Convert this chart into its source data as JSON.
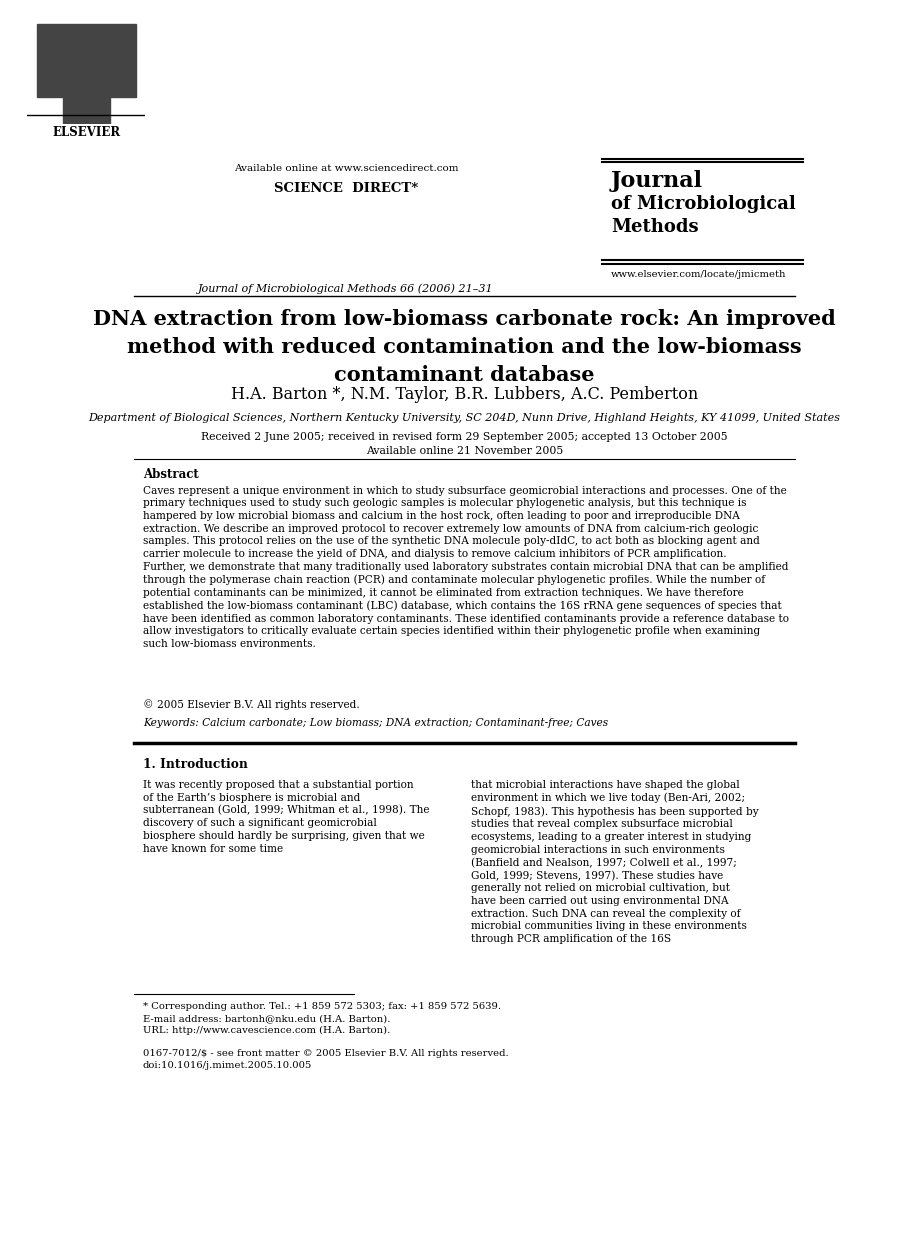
{
  "bg_color": "#ffffff",
  "header": {
    "available_online": "Available online at www.sciencedirect.com",
    "science_direct": "SCIENCE  DIRECT*",
    "journal_name_line1": "Journal",
    "journal_name_of": "of",
    "journal_name_line2": "Microbiological",
    "journal_name_line3": "Methods",
    "journal_ref": "Journal of Microbiological Methods 66 (2006) 21–31",
    "journal_url": "www.elsevier.com/locate/jmicmeth",
    "elsevier": "ELSEVIER"
  },
  "title": "DNA extraction from low-biomass carbonate rock: An improved\nmethod with reduced contamination and the low-biomass\ncontaminant database",
  "authors": "H.A. Barton *, N.M. Taylor, B.R. Lubbers, A.C. Pemberton",
  "affiliation": "Department of Biological Sciences, Northern Kentucky University, SC 204D, Nunn Drive, Highland Heights, KY 41099, United States",
  "dates": "Received 2 June 2005; received in revised form 29 September 2005; accepted 13 October 2005\nAvailable online 21 November 2005",
  "abstract_label": "Abstract",
  "abstract_text": "Caves represent a unique environment in which to study subsurface geomicrobial interactions and processes. One of the primary techniques used to study such geologic samples is molecular phylogenetic analysis, but this technique is hampered by low microbial biomass and calcium in the host rock, often leading to poor and irreproducible DNA extraction. We describe an improved protocol to recover extremely low amounts of DNA from calcium-rich geologic samples. This protocol relies on the use of the synthetic DNA molecule poly-dIdC, to act both as blocking agent and carrier molecule to increase the yield of DNA, and dialysis to remove calcium inhibitors of PCR amplification. Further, we demonstrate that many traditionally used laboratory substrates contain microbial DNA that can be amplified through the polymerase chain reaction (PCR) and contaminate molecular phylogenetic profiles. While the number of potential contaminants can be minimized, it cannot be eliminated from extraction techniques. We have therefore established the low-biomass contaminant (LBC) database, which contains the 16S rRNA gene sequences of species that have been identified as common laboratory contaminants. These identified contaminants provide a reference database to allow investigators to critically evaluate certain species identified within their phylogenetic profile when examining such low-biomass environments.",
  "copyright": "© 2005 Elsevier B.V. All rights reserved.",
  "keywords_label": "Keywords:",
  "keywords": "Calcium carbonate; Low biomass; DNA extraction; Contaminant-free; Caves",
  "section1_title": "1. Introduction",
  "intro_col1": "It was recently proposed that a substantial portion of the Earth’s biosphere is microbial and subterranean (Gold, 1999; Whitman et al., 1998). The discovery of such a significant geomicrobial biosphere should hardly be surprising, given that we have known for some time",
  "intro_col2": "that microbial interactions have shaped the global environment in which we live today (Ben-Ari, 2002; Schopf, 1983). This hypothesis has been supported by studies that reveal complex subsurface microbial ecosystems, leading to a greater interest in studying geomicrobial interactions in such environments (Banfield and Nealson, 1997; Colwell et al., 1997; Gold, 1999; Stevens, 1997). These studies have generally not relied on microbial cultivation, but have been carried out using environmental DNA extraction. Such DNA can reveal the complexity of microbial communities living in these environments through PCR amplification of the 16S",
  "footnote_star": "* Corresponding author. Tel.: +1 859 572 5303; fax: +1 859 572 5639.",
  "footnote_email": "E-mail address: bartonh@nku.edu (H.A. Barton).",
  "footnote_url": "URL: http://www.cavescience.com (H.A. Barton).",
  "footer_issn": "0167-7012/$ - see front matter © 2005 Elsevier B.V. All rights reserved.",
  "footer_doi": "doi:10.1016/j.mimet.2005.10.005"
}
